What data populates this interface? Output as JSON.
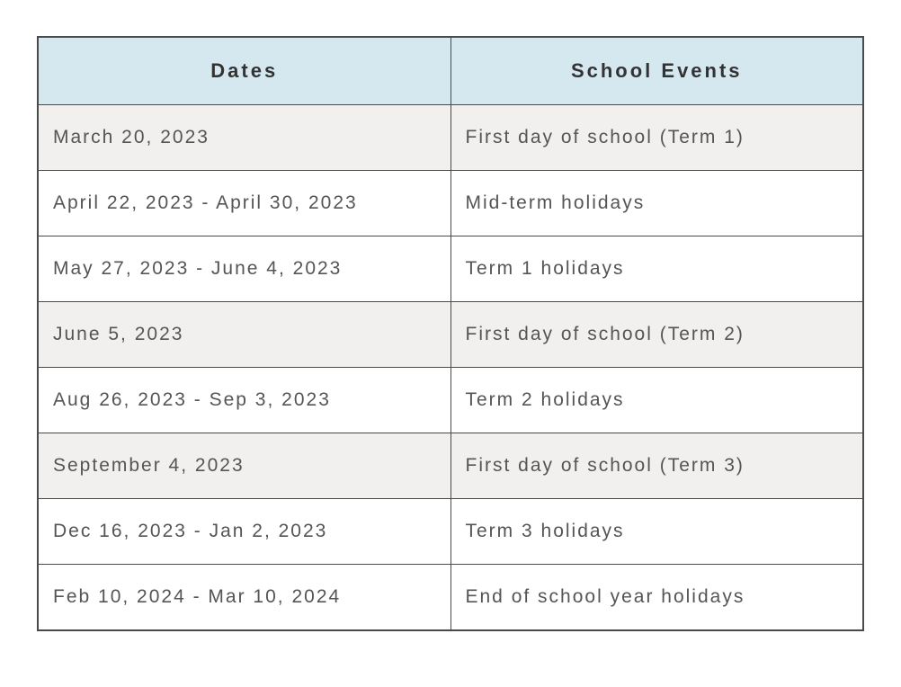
{
  "table": {
    "headers": {
      "dates": "Dates",
      "events": "School Events"
    },
    "columns": {
      "dates_width": "50%",
      "events_width": "50%"
    },
    "colors": {
      "header_bg": "#d5e8f0",
      "shaded_bg": "#f1f0ee",
      "plain_bg": "#ffffff",
      "border": "#4a4a4a",
      "text": "#555555",
      "header_text": "#333333"
    },
    "typography": {
      "header_fontsize": 22,
      "cell_fontsize": 21,
      "header_letterspacing": "3px",
      "cell_letterspacing": "2px",
      "font_family": "Arial, Helvetica, sans-serif"
    },
    "rows": [
      {
        "date": "March 20, 2023",
        "event": "First day of school (Term 1)",
        "shaded": true
      },
      {
        "date": "April 22, 2023 - April 30, 2023",
        "event": "Mid-term holidays",
        "shaded": false
      },
      {
        "date": "May 27, 2023 - June 4, 2023",
        "event": "Term 1 holidays",
        "shaded": false
      },
      {
        "date": "June 5, 2023",
        "event": "First day of school (Term 2)",
        "shaded": true
      },
      {
        "date": "Aug 26, 2023 - Sep 3, 2023",
        "event": "Term 2 holidays",
        "shaded": false
      },
      {
        "date": "September 4, 2023",
        "event": "First day of school (Term 3)",
        "shaded": true
      },
      {
        "date": "Dec 16, 2023 - Jan 2, 2023",
        "event": "Term 3 holidays",
        "shaded": false
      },
      {
        "date": "Feb 10, 2024 - Mar 10, 2024",
        "event": "End of school year holidays",
        "shaded": false
      }
    ]
  }
}
